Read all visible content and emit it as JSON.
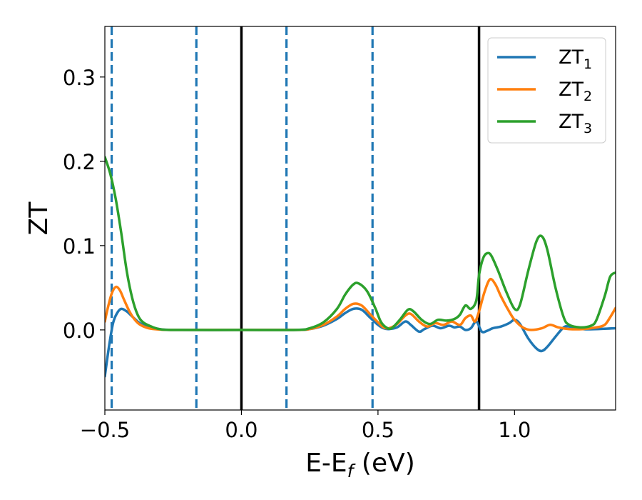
{
  "chart_data": {
    "type": "line",
    "title": "",
    "xlabel": "E-E",
    "xlabel_sub": "f",
    "xlabel_unit": " (eV)",
    "ylabel": "ZT",
    "xlim": [
      -0.5,
      1.37
    ],
    "ylim": [
      -0.095,
      0.36
    ],
    "xticks": [
      -0.5,
      0.0,
      0.5,
      1.0
    ],
    "xtick_labels": [
      "−0.5",
      "0.0",
      "0.5",
      "1.0"
    ],
    "yticks": [
      0.0,
      0.1,
      0.2,
      0.3
    ],
    "ytick_labels": [
      "0.0",
      "0.1",
      "0.2",
      "0.3"
    ],
    "grid": false,
    "legend_position": "top-right",
    "vertical_lines": [
      {
        "x": -0.475,
        "style": "dashed",
        "color": "#1f77b4"
      },
      {
        "x": -0.165,
        "style": "dashed",
        "color": "#1f77b4"
      },
      {
        "x": 0.0,
        "style": "solid",
        "color": "#000000"
      },
      {
        "x": 0.165,
        "style": "dashed",
        "color": "#1f77b4"
      },
      {
        "x": 0.48,
        "style": "dashed",
        "color": "#1f77b4"
      },
      {
        "x": 0.87,
        "style": "solid",
        "color": "#000000"
      }
    ],
    "series": [
      {
        "name": "ZT",
        "name_sub": "1",
        "color": "#1f77b4",
        "points": [
          [
            -0.5,
            -0.055
          ],
          [
            -0.485,
            -0.02
          ],
          [
            -0.47,
            0.008
          ],
          [
            -0.455,
            0.02
          ],
          [
            -0.44,
            0.025
          ],
          [
            -0.42,
            0.022
          ],
          [
            -0.4,
            0.016
          ],
          [
            -0.38,
            0.01
          ],
          [
            -0.36,
            0.006
          ],
          [
            -0.33,
            0.003
          ],
          [
            -0.3,
            0.001
          ],
          [
            -0.25,
            0.0
          ],
          [
            0.0,
            0.0
          ],
          [
            0.2,
            0.0
          ],
          [
            0.25,
            0.001
          ],
          [
            0.3,
            0.005
          ],
          [
            0.35,
            0.013
          ],
          [
            0.38,
            0.02
          ],
          [
            0.41,
            0.025
          ],
          [
            0.44,
            0.024
          ],
          [
            0.47,
            0.015
          ],
          [
            0.5,
            0.006
          ],
          [
            0.52,
            0.002
          ],
          [
            0.54,
            0.001
          ],
          [
            0.57,
            0.003
          ],
          [
            0.6,
            0.01
          ],
          [
            0.62,
            0.006
          ],
          [
            0.65,
            -0.002
          ],
          [
            0.67,
            0.001
          ],
          [
            0.7,
            0.005
          ],
          [
            0.73,
            0.002
          ],
          [
            0.76,
            0.005
          ],
          [
            0.78,
            0.003
          ],
          [
            0.8,
            0.004
          ],
          [
            0.82,
            0.0
          ],
          [
            0.84,
            0.002
          ],
          [
            0.86,
            0.01
          ],
          [
            0.88,
            -0.002
          ],
          [
            0.9,
            -0.001
          ],
          [
            0.92,
            0.002
          ],
          [
            0.95,
            0.004
          ],
          [
            0.98,
            0.008
          ],
          [
            1.0,
            0.012
          ],
          [
            1.02,
            0.007
          ],
          [
            1.05,
            -0.01
          ],
          [
            1.08,
            -0.022
          ],
          [
            1.1,
            -0.025
          ],
          [
            1.12,
            -0.02
          ],
          [
            1.15,
            -0.008
          ],
          [
            1.18,
            0.003
          ],
          [
            1.2,
            0.004
          ],
          [
            1.25,
            0.001
          ],
          [
            1.3,
            0.001
          ],
          [
            1.37,
            0.002
          ]
        ]
      },
      {
        "name": "ZT",
        "name_sub": "2",
        "color": "#ff7f0e",
        "points": [
          [
            -0.5,
            0.01
          ],
          [
            -0.49,
            0.025
          ],
          [
            -0.475,
            0.043
          ],
          [
            -0.46,
            0.051
          ],
          [
            -0.445,
            0.047
          ],
          [
            -0.43,
            0.036
          ],
          [
            -0.41,
            0.022
          ],
          [
            -0.39,
            0.012
          ],
          [
            -0.37,
            0.006
          ],
          [
            -0.34,
            0.002
          ],
          [
            -0.3,
            0.0005
          ],
          [
            -0.25,
            0.0
          ],
          [
            0.0,
            0.0
          ],
          [
            0.2,
            0.0
          ],
          [
            0.25,
            0.001
          ],
          [
            0.3,
            0.006
          ],
          [
            0.35,
            0.016
          ],
          [
            0.38,
            0.025
          ],
          [
            0.41,
            0.031
          ],
          [
            0.44,
            0.029
          ],
          [
            0.47,
            0.019
          ],
          [
            0.5,
            0.009
          ],
          [
            0.52,
            0.003
          ],
          [
            0.54,
            0.002
          ],
          [
            0.57,
            0.007
          ],
          [
            0.6,
            0.017
          ],
          [
            0.62,
            0.019
          ],
          [
            0.65,
            0.01
          ],
          [
            0.68,
            0.004
          ],
          [
            0.71,
            0.008
          ],
          [
            0.74,
            0.006
          ],
          [
            0.77,
            0.01
          ],
          [
            0.8,
            0.006
          ],
          [
            0.82,
            0.014
          ],
          [
            0.84,
            0.017
          ],
          [
            0.855,
            0.01
          ],
          [
            0.87,
            0.022
          ],
          [
            0.89,
            0.045
          ],
          [
            0.91,
            0.06
          ],
          [
            0.93,
            0.054
          ],
          [
            0.95,
            0.04
          ],
          [
            0.98,
            0.022
          ],
          [
            1.0,
            0.012
          ],
          [
            1.03,
            0.003
          ],
          [
            1.06,
            0.0
          ],
          [
            1.1,
            0.002
          ],
          [
            1.13,
            0.006
          ],
          [
            1.16,
            0.003
          ],
          [
            1.2,
            0.001
          ],
          [
            1.25,
            0.001
          ],
          [
            1.3,
            0.003
          ],
          [
            1.33,
            0.006
          ],
          [
            1.35,
            0.015
          ],
          [
            1.37,
            0.026
          ]
        ]
      },
      {
        "name": "ZT",
        "name_sub": "3",
        "color": "#2ca02c",
        "points": [
          [
            -0.5,
            0.205
          ],
          [
            -0.48,
            0.185
          ],
          [
            -0.46,
            0.155
          ],
          [
            -0.44,
            0.115
          ],
          [
            -0.42,
            0.07
          ],
          [
            -0.4,
            0.038
          ],
          [
            -0.38,
            0.018
          ],
          [
            -0.36,
            0.009
          ],
          [
            -0.33,
            0.004
          ],
          [
            -0.3,
            0.001
          ],
          [
            -0.25,
            0.0
          ],
          [
            0.0,
            0.0
          ],
          [
            0.2,
            0.0
          ],
          [
            0.25,
            0.002
          ],
          [
            0.3,
            0.009
          ],
          [
            0.35,
            0.025
          ],
          [
            0.38,
            0.042
          ],
          [
            0.41,
            0.054
          ],
          [
            0.43,
            0.055
          ],
          [
            0.46,
            0.046
          ],
          [
            0.49,
            0.026
          ],
          [
            0.51,
            0.01
          ],
          [
            0.53,
            0.003
          ],
          [
            0.55,
            0.002
          ],
          [
            0.58,
            0.012
          ],
          [
            0.61,
            0.024
          ],
          [
            0.63,
            0.022
          ],
          [
            0.66,
            0.012
          ],
          [
            0.69,
            0.007
          ],
          [
            0.72,
            0.012
          ],
          [
            0.75,
            0.011
          ],
          [
            0.78,
            0.013
          ],
          [
            0.8,
            0.018
          ],
          [
            0.82,
            0.029
          ],
          [
            0.84,
            0.025
          ],
          [
            0.86,
            0.035
          ],
          [
            0.87,
            0.065
          ],
          [
            0.885,
            0.085
          ],
          [
            0.9,
            0.091
          ],
          [
            0.915,
            0.088
          ],
          [
            0.94,
            0.07
          ],
          [
            0.97,
            0.045
          ],
          [
            1.0,
            0.025
          ],
          [
            1.02,
            0.03
          ],
          [
            1.05,
            0.07
          ],
          [
            1.08,
            0.105
          ],
          [
            1.1,
            0.111
          ],
          [
            1.12,
            0.095
          ],
          [
            1.15,
            0.05
          ],
          [
            1.18,
            0.015
          ],
          [
            1.2,
            0.006
          ],
          [
            1.24,
            0.003
          ],
          [
            1.28,
            0.005
          ],
          [
            1.3,
            0.012
          ],
          [
            1.33,
            0.04
          ],
          [
            1.35,
            0.063
          ],
          [
            1.37,
            0.068
          ]
        ]
      }
    ]
  }
}
